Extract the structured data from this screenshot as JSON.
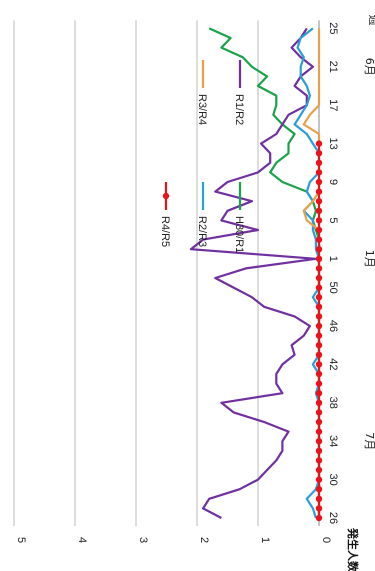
{
  "chart_data": {
    "type": "line",
    "title": "",
    "ylabel": "発生人数",
    "ylim": [
      0,
      5
    ],
    "y_ticks": [
      "0",
      "1",
      "2",
      "3",
      "4",
      "5"
    ],
    "x": [
      "26",
      "27",
      "28",
      "29",
      "30",
      "31",
      "32",
      "33",
      "34",
      "35",
      "36",
      "37",
      "38",
      "39",
      "40",
      "41",
      "42",
      "43",
      "44",
      "45",
      "46",
      "47",
      "48",
      "49",
      "50",
      "51",
      "52",
      "1",
      "2",
      "3",
      "4",
      "5",
      "6",
      "7",
      "8",
      "9",
      "10",
      "11",
      "12",
      "13",
      "14",
      "15",
      "16",
      "17",
      "18",
      "19",
      "20",
      "21",
      "22",
      "23",
      "24",
      "25"
    ],
    "x_tick_labels": [
      "26",
      "30",
      "34",
      "38",
      "42",
      "46",
      "50",
      "1",
      "5",
      "9",
      "13",
      "17",
      "21",
      "25"
    ],
    "x_unit": "週",
    "month_labels": [
      {
        "x": "34",
        "label": "7月"
      },
      {
        "x": "1",
        "label": "1月"
      },
      {
        "x": "21",
        "label": "6月"
      }
    ],
    "grid": "horizontal",
    "legend_position": "top",
    "series": [
      {
        "name": "H30/R1",
        "color": "#1aa34a",
        "marker": false,
        "values": [
          0,
          0,
          0,
          0,
          0,
          0,
          0,
          0,
          0,
          0,
          0,
          0,
          0,
          0,
          0,
          0,
          0,
          0,
          0,
          0,
          0,
          0,
          0,
          0,
          0,
          0,
          0,
          0,
          0,
          0,
          0.05,
          0.1,
          0.05,
          0.1,
          0.2,
          0.6,
          0.8,
          0.7,
          0.5,
          0.5,
          0.4,
          0.6,
          0.75,
          0.7,
          0.7,
          1.0,
          0.85,
          1.1,
          1.25,
          1.6,
          1.45,
          1.8
        ]
      },
      {
        "name": "R1/R2",
        "color": "#7030a0",
        "marker": false,
        "values": [
          1.6,
          1.9,
          1.8,
          1.3,
          1.0,
          0.85,
          0.7,
          0.6,
          0.6,
          0.5,
          0.9,
          1.4,
          1.6,
          0.6,
          0.7,
          0.7,
          0.6,
          0.4,
          0.45,
          0.25,
          0.15,
          0.4,
          0.9,
          1.1,
          1.4,
          1.7,
          1.2,
          0.05,
          2.1,
          1.9,
          1.0,
          1.6,
          1.5,
          1.1,
          1.7,
          1.5,
          1.0,
          0.8,
          0.8,
          0.95,
          0.7,
          0.6,
          0.5,
          0.2,
          0.2,
          0.4,
          0.3,
          0.1,
          0.3,
          0.45,
          0.3,
          0.2
        ]
      },
      {
        "name": "R2/R3",
        "color": "#2a9fd6",
        "marker": false,
        "values": [
          0.05,
          0.1,
          0.2,
          0.05,
          0,
          0,
          0,
          0,
          0,
          0,
          0,
          0,
          0,
          0.05,
          0,
          0,
          0.1,
          0,
          0,
          0,
          0,
          0,
          0,
          0.1,
          0,
          0,
          0,
          0,
          0.05,
          0.05,
          0.1,
          0.1,
          0.25,
          0.1,
          0.2,
          0.15,
          0,
          0,
          0,
          0.1,
          0.2,
          0.4,
          0.3,
          0.2,
          0.15,
          0.2,
          0.3,
          0.3,
          0.25,
          0.35,
          0.3,
          0.1
        ]
      },
      {
        "name": "R3/R4",
        "color": "#e8a04a",
        "marker": false,
        "values": [
          0,
          0,
          0,
          0,
          0,
          0,
          0,
          0,
          0,
          0,
          0,
          0,
          0,
          0,
          0,
          0,
          0,
          0,
          0,
          0,
          0,
          0,
          0,
          0,
          0,
          0,
          0,
          0,
          0,
          0,
          0,
          0.2,
          0.25,
          0.1,
          0,
          0,
          0,
          0,
          0,
          0,
          0,
          0.25,
          0.15,
          0,
          0,
          0,
          0,
          0,
          0,
          0,
          0,
          0
        ]
      },
      {
        "name": "R4/R5",
        "color": "#e8141b",
        "marker": true,
        "values": [
          0,
          0,
          0,
          0,
          0,
          0,
          0,
          0,
          0,
          0,
          0,
          0,
          0,
          0,
          0,
          0,
          0,
          0,
          0,
          0,
          0,
          0,
          0,
          0,
          0,
          0,
          0,
          0,
          0,
          0,
          0,
          0,
          0,
          0,
          0,
          0,
          0,
          0,
          0,
          0,
          null,
          null,
          null,
          null,
          null,
          null,
          null,
          null,
          null,
          null,
          null,
          null
        ]
      }
    ]
  }
}
